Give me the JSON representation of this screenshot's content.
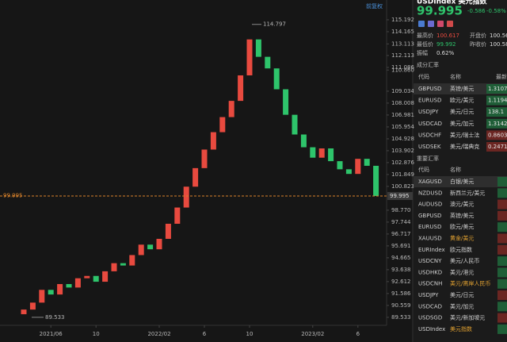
{
  "chart_data": {
    "type": "candlestick",
    "adjust_label": "前复权",
    "up_color": "#e84a3f",
    "down_color": "#2ec46b",
    "categories": [
      null,
      null,
      null,
      "2021/06",
      null,
      null,
      null,
      null,
      "10",
      null,
      null,
      null,
      null,
      null,
      null,
      "2022/02",
      null,
      null,
      null,
      null,
      "6",
      null,
      null,
      null,
      null,
      "10",
      null,
      null,
      null,
      null,
      null,
      null,
      "2023/02",
      null,
      null,
      null,
      null,
      "6",
      null,
      null
    ],
    "open": [
      89.8,
      90.2,
      90.8,
      91.9,
      91.5,
      92.4,
      92.1,
      92.9,
      93.1,
      92.6,
      93.5,
      94.2,
      94.0,
      94.9,
      95.8,
      95.4,
      96.3,
      97.6,
      99.0,
      100.8,
      102.4,
      104.0,
      105.5,
      106.8,
      108.2,
      110.4,
      113.5,
      112.0,
      111.0,
      109.2,
      107.0,
      105.3,
      104.2,
      103.3,
      104.1,
      103.0,
      102.3,
      101.9,
      103.2,
      102.6
    ],
    "close": [
      90.2,
      90.8,
      91.9,
      91.5,
      92.4,
      92.1,
      92.9,
      93.1,
      92.6,
      93.5,
      94.2,
      94.0,
      94.9,
      95.8,
      95.4,
      96.3,
      97.6,
      99.0,
      100.8,
      102.4,
      104.0,
      105.5,
      106.8,
      108.2,
      110.4,
      113.5,
      112.0,
      111.0,
      109.2,
      107.0,
      105.3,
      104.2,
      103.3,
      104.1,
      103.0,
      102.3,
      101.9,
      103.2,
      102.6,
      99.995
    ],
    "ylim": [
      88.84,
      116.9
    ],
    "yticks": [
      115.192,
      114.165,
      113.113,
      112.113,
      111.086,
      {
        "value": 110.86,
        "label": "110.860"
      },
      109.034,
      108.008,
      106.981,
      105.954,
      104.928,
      103.902,
      102.876,
      101.849,
      100.823,
      {
        "value": 98.77,
        "label": "98.770"
      },
      97.744,
      96.717,
      95.691,
      94.665,
      93.638,
      92.612,
      91.586,
      90.559,
      89.533
    ],
    "last_price": 99.995,
    "high_label": 114.797,
    "low_label": 89.533,
    "grid": false
  },
  "panel": {
    "symbol": "USDIndex 美元指数",
    "price": "99.995",
    "change": "-0.586",
    "change_pct": "-0.58%",
    "stats": [
      [
        "最高价",
        "100.617",
        "开盘价",
        "100.56"
      ],
      [
        "最低价",
        "99.992",
        "昨收价",
        "100.58"
      ],
      [
        "振幅",
        "0.62%"
      ]
    ],
    "section1": "成分汇率",
    "headers": [
      "代码",
      "名称",
      "最新"
    ],
    "components": [
      [
        "GBPUSD",
        "英镑/美元",
        "1.3107"
      ],
      [
        "EURUSD",
        "欧元/美元",
        "1.1194"
      ],
      [
        "USDJPY",
        "美元/日元",
        "138.1"
      ],
      [
        "USDCAD",
        "美元/加元",
        "1.3142"
      ],
      [
        "USDCHF",
        "美元/瑞士法",
        "0.8603"
      ],
      [
        "USDSEK",
        "美元/瑞典克",
        "0.2471"
      ]
    ],
    "section2": "重要汇率",
    "headers2": [
      "代码",
      "名称"
    ],
    "important": [
      [
        "XAGUSD",
        "白银/美元"
      ],
      [
        "NZDUSD",
        "新西兰元/美元"
      ],
      [
        "AUDUSD",
        "澳元/美元"
      ],
      [
        "GBPUSD",
        "英镑/美元"
      ],
      [
        "EURUSD",
        "欧元/美元"
      ],
      [
        "XAUUSD",
        "黄金/美元"
      ],
      [
        "EURIndex",
        "欧元指数"
      ],
      [
        "USDCNY",
        "美元/人民币"
      ],
      [
        "USDHKD",
        "美元/港元"
      ],
      [
        "USDCNH",
        "美元/离岸人民币"
      ],
      [
        "USDJPY",
        "美元/日元"
      ],
      [
        "USDCAD",
        "美元/加元"
      ],
      [
        "USDSGD",
        "美元/新加坡元"
      ],
      [
        "USDIndex",
        "美元指数"
      ]
    ]
  }
}
